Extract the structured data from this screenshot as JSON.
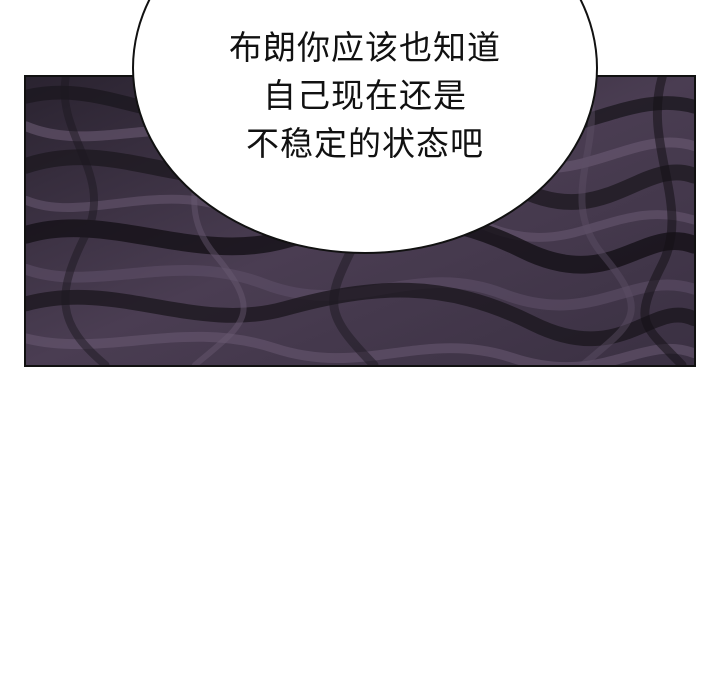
{
  "speech_bubble": {
    "lines": [
      "布朗你应该也知道",
      "自己现在还是",
      "不稳定的状态吧"
    ]
  },
  "panel": {
    "description_colors": {
      "border": "#111111",
      "swirl_dark": "#1c181f",
      "swirl_mid": "#4a3d52",
      "swirl_light": "#6a5a73"
    }
  }
}
